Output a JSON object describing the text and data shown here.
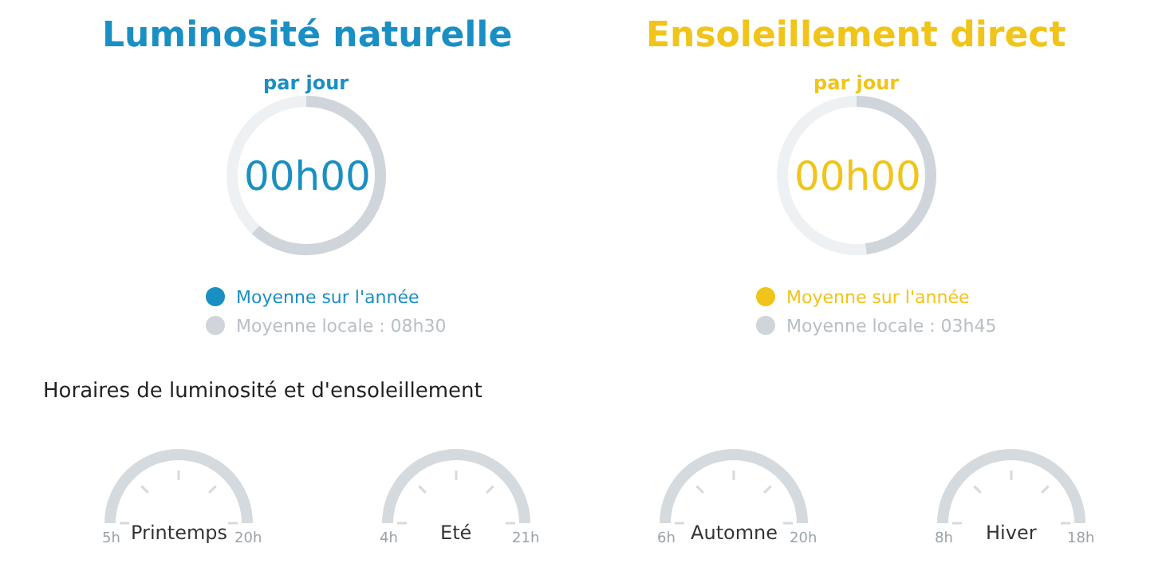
{
  "chart_data": [
    {
      "type": "donut",
      "title": "Luminosité naturelle",
      "subtitle": "par jour",
      "categories": [
        "Moyenne sur l'année",
        "Moyenne locale : 08h30",
        null
      ],
      "values": [
        0,
        62,
        38
      ],
      "colors": [
        "#1a8fc4",
        "#cfd5da",
        "#eef1f4"
      ],
      "annotations": [
        "00h00"
      ],
      "legend": "bottom"
    },
    {
      "type": "donut",
      "title": "Ensoleillement direct",
      "subtitle": "par jour",
      "categories": [
        "Moyenne sur l'année",
        "Moyenne locale : 03h45",
        null
      ],
      "values": [
        0,
        48,
        52
      ],
      "colors": [
        "#f0c419",
        "#cfd5da",
        "#eef1f4"
      ],
      "annotations": [
        "00h00"
      ],
      "legend": "bottom"
    },
    {
      "type": "other",
      "title": "Horaires de luminosité et d'ensoleillement",
      "categories": [
        "Printemps",
        "Eté",
        "Automne",
        "Hiver"
      ],
      "annotations": [
        "5h",
        "20h",
        "4h",
        "21h",
        "6h",
        "20h",
        "8h",
        "18h"
      ]
    }
  ]
}
